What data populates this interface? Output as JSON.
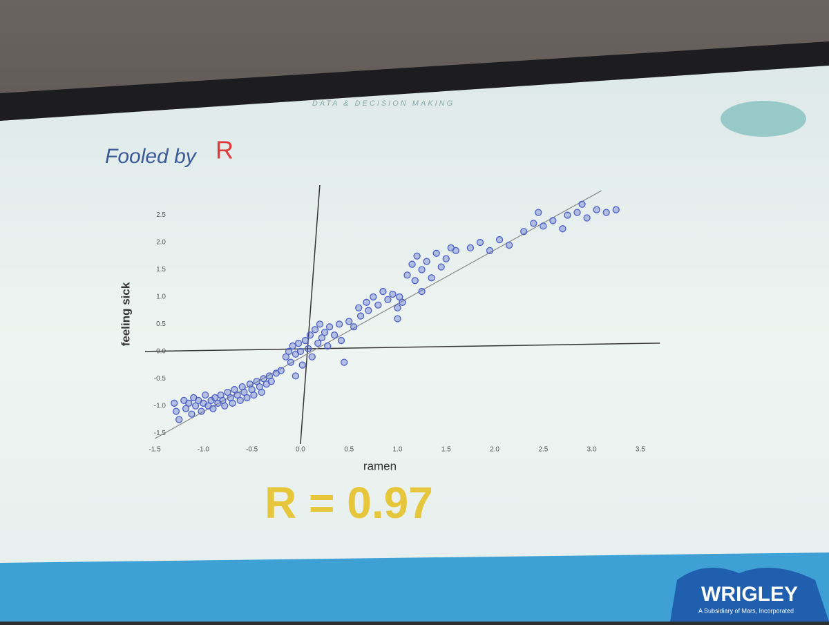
{
  "slide": {
    "header": "DATA & DECISION MAKING",
    "title": "Fooled by",
    "title_emphasis": "R",
    "callout": "R = 0.97",
    "brand": "WRIGLEY",
    "brand_tagline": "A Subsidiary of Mars, Incorporated"
  },
  "chart_data": {
    "type": "scatter",
    "x_label": "ramen",
    "y_label": "feeling sick",
    "color": "#4a5fc8",
    "x": [
      -1.3,
      -1.28,
      -1.25,
      -1.2,
      -1.18,
      -1.15,
      -1.12,
      -1.1,
      -1.08,
      -1.05,
      -1.02,
      -1.0,
      -0.98,
      -0.95,
      -0.92,
      -0.9,
      -0.88,
      -0.85,
      -0.82,
      -0.8,
      -0.78,
      -0.75,
      -0.72,
      -0.7,
      -0.68,
      -0.65,
      -0.62,
      -0.6,
      -0.58,
      -0.55,
      -0.52,
      -0.5,
      -0.48,
      -0.45,
      -0.42,
      -0.4,
      -0.38,
      -0.35,
      -0.32,
      -0.3,
      -0.25,
      -0.2,
      -0.15,
      -0.12,
      -0.1,
      -0.08,
      -0.05,
      -0.02,
      0.0,
      0.02,
      0.05,
      0.08,
      0.1,
      0.12,
      0.15,
      0.18,
      0.2,
      0.22,
      0.25,
      0.28,
      0.3,
      0.35,
      0.4,
      0.42,
      -0.05,
      0.45,
      0.5,
      0.55,
      0.6,
      0.62,
      0.68,
      0.7,
      0.75,
      0.8,
      0.85,
      0.9,
      0.95,
      1.0,
      1.02,
      1.05,
      1.0,
      1.1,
      1.15,
      1.18,
      1.2,
      1.25,
      1.3,
      1.35,
      1.4,
      1.45,
      1.5,
      1.55,
      1.6,
      1.25,
      1.75,
      1.85,
      1.95,
      2.05,
      2.15,
      2.3,
      2.4,
      2.45,
      2.5,
      2.6,
      2.7,
      2.75,
      2.85,
      2.95,
      3.05,
      3.15,
      3.25,
      2.9
    ],
    "y": [
      -0.95,
      -1.1,
      -1.25,
      -0.9,
      -1.05,
      -0.95,
      -1.15,
      -0.85,
      -1.0,
      -0.9,
      -1.1,
      -0.95,
      -0.8,
      -1.0,
      -0.9,
      -1.05,
      -0.85,
      -0.95,
      -0.8,
      -0.9,
      -1.0,
      -0.75,
      -0.85,
      -0.95,
      -0.7,
      -0.8,
      -0.9,
      -0.65,
      -0.75,
      -0.85,
      -0.6,
      -0.7,
      -0.8,
      -0.55,
      -0.65,
      -0.75,
      -0.5,
      -0.6,
      -0.45,
      -0.55,
      -0.4,
      -0.35,
      -0.1,
      0.0,
      -0.2,
      0.1,
      -0.05,
      0.15,
      0.0,
      -0.25,
      0.2,
      0.05,
      0.3,
      -0.1,
      0.4,
      0.15,
      0.5,
      0.25,
      0.35,
      0.1,
      0.45,
      0.3,
      0.5,
      0.2,
      -0.45,
      -0.2,
      0.55,
      0.45,
      0.8,
      0.65,
      0.9,
      0.75,
      1.0,
      0.85,
      1.1,
      0.95,
      1.05,
      0.8,
      1.0,
      0.9,
      0.6,
      1.4,
      1.6,
      1.3,
      1.75,
      1.5,
      1.65,
      1.35,
      1.8,
      1.55,
      1.7,
      1.9,
      1.85,
      1.1,
      1.9,
      2.0,
      1.85,
      2.05,
      1.95,
      2.2,
      2.35,
      2.55,
      2.3,
      2.4,
      2.25,
      2.5,
      2.55,
      2.45,
      2.6,
      2.55,
      2.6,
      2.7
    ],
    "trend": {
      "x": [
        -1.5,
        3.1
      ],
      "y": [
        -1.6,
        2.95
      ]
    },
    "xlim": [
      -1.6,
      3.7
    ],
    "ylim": [
      -1.7,
      2.9
    ],
    "xticks": [
      -1.5,
      {
        "value": -1,
        "label": "-1.0"
      },
      -0.5,
      {
        "value": 0,
        "label": "0.0"
      },
      0.5,
      {
        "value": 1,
        "label": "1.0"
      },
      1.5,
      {
        "value": 2,
        "label": "2.0"
      },
      2.5,
      {
        "value": 3,
        "label": "3.0"
      },
      3.5
    ],
    "yticks": [
      -1.5,
      {
        "value": -1,
        "label": "-1.0"
      },
      -0.5,
      {
        "value": 0,
        "label": "0.0"
      },
      0.5,
      {
        "value": 1,
        "label": "1.0"
      },
      1.5,
      {
        "value": 2,
        "label": "2.0"
      },
      2.5
    ]
  }
}
